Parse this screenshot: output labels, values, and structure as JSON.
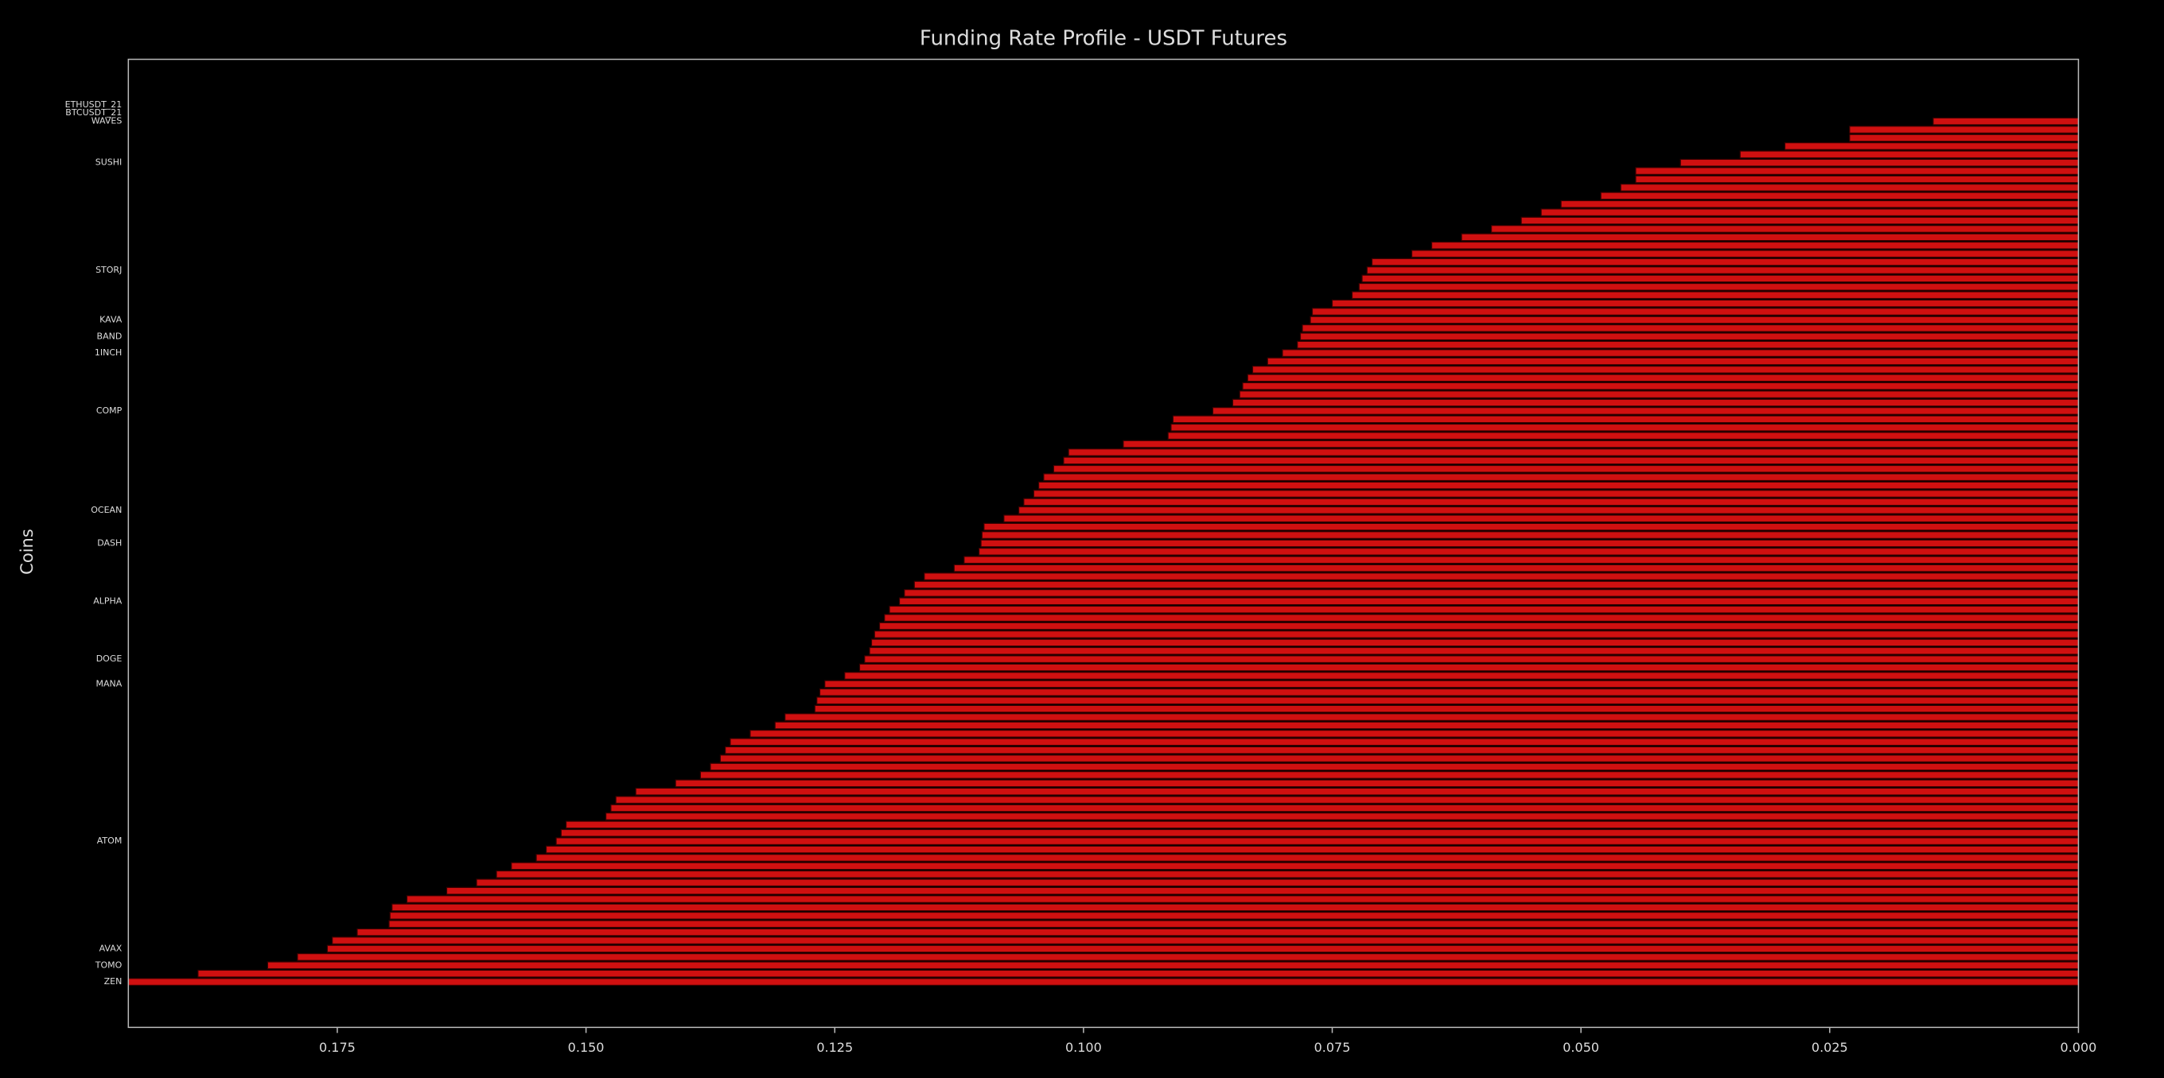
{
  "chart_data": {
    "type": "barh",
    "title": "Funding Rate Profile - USDT Futures",
    "ylabel": "Coins",
    "color": "#d01010",
    "categories": [
      "ETHUSDT_21",
      "BTCUSDT_21",
      "WAVES",
      null,
      null,
      null,
      null,
      "SUSHI",
      null,
      null,
      null,
      null,
      null,
      null,
      null,
      null,
      null,
      null,
      null,
      null,
      "STORJ",
      null,
      null,
      null,
      null,
      null,
      "KAVA",
      null,
      "BAND",
      null,
      "1INCH",
      null,
      null,
      null,
      null,
      null,
      null,
      "COMP",
      null,
      null,
      null,
      null,
      null,
      null,
      null,
      null,
      null,
      null,
      null,
      "OCEAN",
      null,
      null,
      null,
      "DASH",
      null,
      null,
      null,
      null,
      null,
      null,
      "ALPHA",
      null,
      null,
      null,
      null,
      null,
      null,
      "DOGE",
      null,
      null,
      "MANA",
      null,
      null,
      null,
      null,
      null,
      null,
      null,
      null,
      null,
      null,
      null,
      null,
      null,
      null,
      null,
      null,
      null,
      null,
      "ATOM",
      null,
      null,
      null,
      null,
      null,
      null,
      null,
      null,
      null,
      null,
      null,
      null,
      "AVAX",
      null,
      "TOMO",
      null,
      "ZEN"
    ],
    "values": [
      0,
      0,
      0.0146,
      0.023,
      0.023,
      0.0295,
      0.034,
      0.04,
      0.0445,
      0.0445,
      0.046,
      0.048,
      0.052,
      0.054,
      0.056,
      0.059,
      0.062,
      0.065,
      0.067,
      0.071,
      0.0715,
      0.072,
      0.0723,
      0.073,
      0.075,
      0.077,
      0.0772,
      0.078,
      0.0782,
      0.0785,
      0.08,
      0.0815,
      0.083,
      0.0835,
      0.084,
      0.0843,
      0.085,
      0.087,
      0.091,
      0.0912,
      0.0915,
      0.096,
      0.1015,
      0.102,
      0.103,
      0.104,
      0.1045,
      0.105,
      0.106,
      0.1065,
      0.108,
      0.11,
      0.1102,
      0.1103,
      0.1105,
      0.112,
      0.113,
      0.116,
      0.117,
      0.118,
      0.1185,
      0.1195,
      0.12,
      0.1205,
      0.121,
      0.1213,
      0.1215,
      0.122,
      0.1225,
      0.124,
      0.126,
      0.1265,
      0.1268,
      0.127,
      0.13,
      0.131,
      0.1335,
      0.1355,
      0.136,
      0.1365,
      0.1375,
      0.1385,
      0.141,
      0.145,
      0.147,
      0.1475,
      0.148,
      0.152,
      0.1525,
      0.153,
      0.154,
      0.155,
      0.1575,
      0.159,
      0.161,
      0.164,
      0.168,
      0.1695,
      0.1697,
      0.1698,
      0.173,
      0.1755,
      0.176,
      0.179,
      0.182,
      0.189,
      0.196
    ],
    "xlim": [
      0.196,
      0
    ],
    "xticks": [
      0.175,
      {
        "value": 0.15,
        "label": "0.150"
      },
      0.125,
      {
        "value": 0.1,
        "label": "0.100"
      },
      0.075,
      {
        "value": 0.05,
        "label": "0.050"
      },
      0.025,
      {
        "value": 0,
        "label": "0.000"
      }
    ]
  }
}
